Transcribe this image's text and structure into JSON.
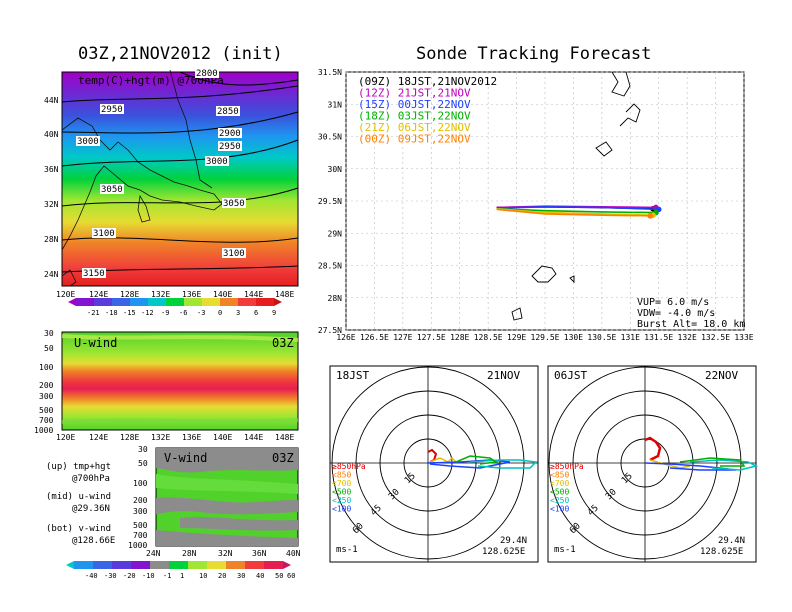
{
  "left": {
    "title": "03Z,21NOV2012 (init)",
    "map_label": "temp(C)+hgt(m) @700hPa",
    "lat_ticks": [
      "44N",
      "40N",
      "36N",
      "32N",
      "28N",
      "24N"
    ],
    "lon_ticks": [
      "120E",
      "124E",
      "128E",
      "132E",
      "136E",
      "140E",
      "144E",
      "148E"
    ],
    "contour_labels": [
      "2800",
      "2850",
      "2900",
      "2950",
      "3000",
      "3050",
      "3100",
      "3150",
      "2950",
      "3000",
      "3050",
      "3100",
      "3000",
      "2950",
      "2850"
    ],
    "temp_colorbar": [
      "-21",
      "-18",
      "-15",
      "-12",
      "-9",
      "-6",
      "-3",
      "0",
      "3",
      "6",
      "9"
    ],
    "uwind": {
      "label": "U-wind",
      "time": "03Z",
      "pressure_ticks": [
        "30",
        "50",
        "100",
        "200",
        "300",
        "500",
        "700",
        "1000"
      ],
      "lon_ticks": [
        "120E",
        "124E",
        "128E",
        "132E",
        "136E",
        "140E",
        "144E",
        "148E"
      ]
    },
    "vwind": {
      "label": "V-wind",
      "time": "03Z",
      "pressure_ticks": [
        "30",
        "50",
        "100",
        "200",
        "300",
        "500",
        "700",
        "1000"
      ],
      "lat_ticks": [
        "24N",
        "28N",
        "32N",
        "36N",
        "40N"
      ]
    },
    "legend_lines": [
      "(up) tmp+hgt",
      "@700hPa",
      "(mid) u-wind",
      "@29.36N",
      "(bot) v-wind",
      "@128.66E"
    ],
    "wind_colorbar": [
      "-40",
      "-30",
      "-20",
      "-10",
      "-1",
      "1",
      "10",
      "20",
      "30",
      "40",
      "50",
      "60"
    ]
  },
  "right": {
    "title": "Sonde Tracking Forecast",
    "lat_ticks": [
      "31.5N",
      "31N",
      "30.5N",
      "30N",
      "29.5N",
      "29N",
      "28.5N",
      "28N",
      "27.5N"
    ],
    "lon_ticks": [
      "126E",
      "126.5E",
      "127E",
      "127.5E",
      "128E",
      "128.5E",
      "129E",
      "129.5E",
      "130E",
      "130.5E",
      "131E",
      "131.5E",
      "132E",
      "132.5E",
      "133E"
    ],
    "legend": [
      {
        "text": "(09Z) 18JST,21NOV2012",
        "color": "#000000"
      },
      {
        "text": "(12Z) 21JST,21NOV",
        "color": "#c000c0"
      },
      {
        "text": "(15Z) 00JST,22NOV",
        "color": "#2040ff"
      },
      {
        "text": "(18Z) 03JST,22NOV",
        "color": "#00b000"
      },
      {
        "text": "(21Z) 06JST,22NOV",
        "color": "#e0c000"
      },
      {
        "text": "(00Z) 09JST,22NOV",
        "color": "#ff8000"
      }
    ],
    "params": [
      "VUP=  6.0 m/s",
      "VDW= -4.0 m/s",
      "Burst Alt= 18.0 km"
    ],
    "hodo1": {
      "left": "18JST",
      "right": "21NOV",
      "lat": "29.4N",
      "lon": "128.625E",
      "unit": "ms-1",
      "rings": [
        "15",
        "30",
        "45",
        "60"
      ]
    },
    "hodo2": {
      "left": "06JST",
      "right": "22NOV",
      "lat": "29.4N",
      "lon": "128.625E",
      "unit": "ms-1",
      "rings": [
        "15",
        "30",
        "45",
        "60"
      ]
    },
    "pressure_legend": [
      {
        "text": "≥850hPa",
        "color": "#e00000"
      },
      {
        "text": "<850",
        "color": "#ff8000"
      },
      {
        "text": "<700",
        "color": "#e0c000"
      },
      {
        "text": "<500",
        "color": "#00b000"
      },
      {
        "text": "<250",
        "color": "#00c0c0"
      },
      {
        "text": "<100",
        "color": "#2040ff"
      }
    ]
  },
  "chart_data": [
    {
      "type": "line",
      "title": "Sonde Tracking Forecast",
      "xlim": [
        126,
        133
      ],
      "ylim": [
        27.5,
        31.5
      ],
      "series": [
        {
          "name": "(09Z) 18JST,21NOV2012",
          "x": [
            128.65,
            129.4,
            130.4,
            131.4
          ],
          "y": [
            29.4,
            29.41,
            29.4,
            29.38
          ]
        },
        {
          "name": "(12Z) 21JST,21NOV",
          "x": [
            128.65,
            129.5,
            130.5,
            131.45
          ],
          "y": [
            29.4,
            29.42,
            29.41,
            29.4
          ]
        },
        {
          "name": "(15Z) 00JST,22NOV",
          "x": [
            128.65,
            129.5,
            130.5,
            131.5
          ],
          "y": [
            29.39,
            29.41,
            29.4,
            29.37
          ]
        },
        {
          "name": "(18Z) 03JST,22NOV",
          "x": [
            128.65,
            129.5,
            130.5,
            131.45
          ],
          "y": [
            29.38,
            29.35,
            29.33,
            29.32
          ]
        },
        {
          "name": "(21Z) 06JST,22NOV",
          "x": [
            128.65,
            129.5,
            130.5,
            131.4
          ],
          "y": [
            29.38,
            29.32,
            29.3,
            29.28
          ]
        },
        {
          "name": "(00Z) 09JST,22NOV",
          "x": [
            128.65,
            129.5,
            130.5,
            131.35
          ],
          "y": [
            29.37,
            29.3,
            29.28,
            29.27
          ]
        }
      ]
    }
  ]
}
